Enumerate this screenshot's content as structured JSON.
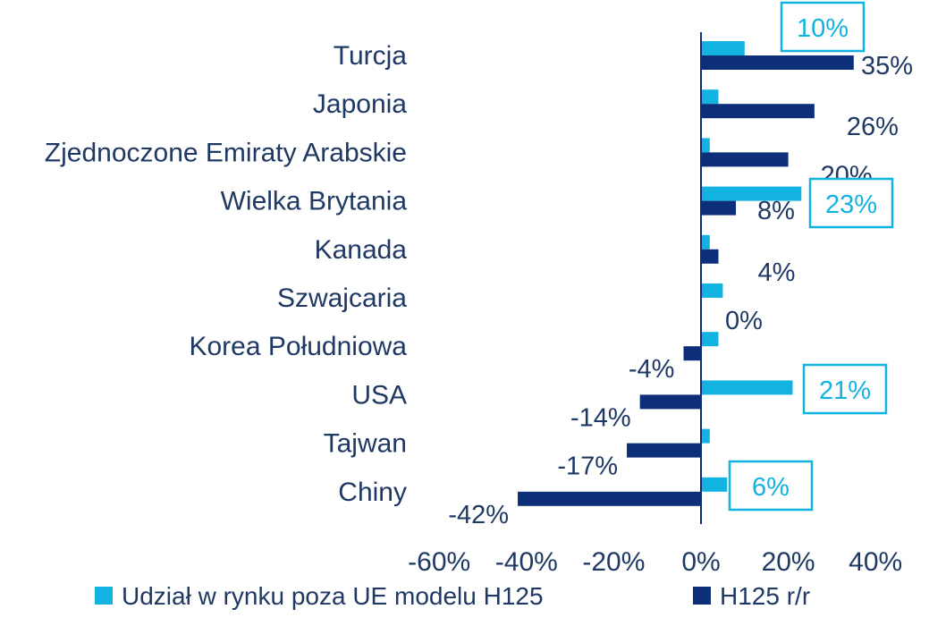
{
  "chart_data": {
    "type": "bar",
    "orientation": "horizontal",
    "categories": [
      "Turcja",
      "Japonia",
      "Zjednoczone Emiraty Arabskie",
      "Wielka Brytania",
      "Kanada",
      "Szwajcaria",
      "Korea Południowa",
      "USA",
      "Tajwan",
      "Chiny"
    ],
    "series": [
      {
        "name": "Udział w rynku poza UE modelu H125",
        "color": "#12b3e0",
        "values": [
          10,
          4,
          2,
          23,
          2,
          5,
          4,
          21,
          2,
          6
        ],
        "labels": [
          "10%",
          "",
          "",
          "23%",
          "",
          "",
          "",
          "21%",
          "",
          "6%"
        ]
      },
      {
        "name": "H125 r/r",
        "color": "#0d2f7a",
        "values": [
          35,
          26,
          20,
          8,
          4,
          0,
          -4,
          -14,
          -17,
          -42
        ],
        "labels": [
          "35%",
          "26%",
          "20%",
          "8%",
          "4%",
          "0%",
          "-4%",
          "-14%",
          "-17%",
          "-42%"
        ]
      }
    ],
    "xlim": [
      -60,
      40
    ],
    "xticks": [
      -60,
      -40,
      -20,
      0,
      20,
      40
    ],
    "xtick_labels": [
      "-60%",
      "-40%",
      "-20%",
      "0%",
      "20%",
      "40%"
    ],
    "grid": false,
    "legend_position": "bottom"
  }
}
